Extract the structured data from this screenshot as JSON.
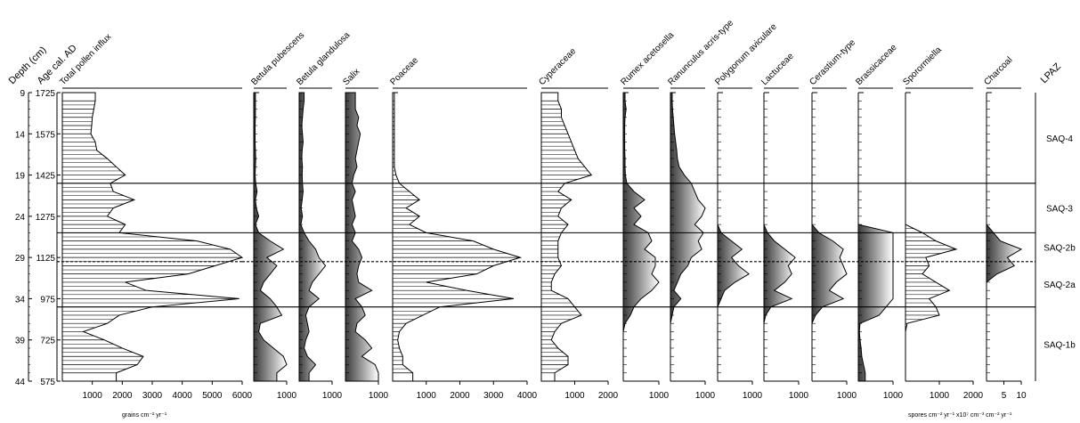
{
  "chart_data": {
    "type": "area",
    "title": "",
    "depth_label": "Depth (cm)",
    "age_label": "Age cal. AD",
    "depth_ticks": [
      9,
      14,
      19,
      24,
      29,
      34,
      39,
      44
    ],
    "age_ticks": [
      1725,
      1575,
      1425,
      1275,
      1125,
      975,
      725,
      575
    ],
    "depth_range": [
      9,
      44
    ],
    "depths": [
      10,
      11,
      12,
      13,
      14,
      15,
      16,
      17,
      18,
      19,
      20,
      21,
      22,
      23,
      24,
      25,
      26,
      27,
      28,
      29,
      30,
      31,
      32,
      33,
      34,
      35,
      36,
      37,
      38,
      39,
      40,
      41,
      42,
      43
    ],
    "series": [
      {
        "name": "Total pollen influx",
        "style": "hatch",
        "xmax": 6000,
        "ticks": [
          1000,
          2000,
          3000,
          4000,
          5000,
          6000
        ],
        "values": [
          1100,
          1050,
          1000,
          980,
          950,
          1100,
          1150,
          1500,
          1800,
          2100,
          1600,
          1700,
          2400,
          1700,
          1500,
          2100,
          1900,
          4500,
          5600,
          6000,
          5100,
          4200,
          2100,
          2800,
          5900,
          3000,
          1900,
          1500,
          700,
          1400,
          2000,
          2700,
          2500,
          1800
        ]
      },
      {
        "name": "Betula pubescens",
        "style": "grad",
        "xmax": 1000,
        "ticks": [
          1000
        ],
        "values": [
          50,
          50,
          50,
          40,
          40,
          40,
          50,
          60,
          50,
          40,
          60,
          100,
          50,
          80,
          150,
          50,
          150,
          500,
          900,
          400,
          700,
          500,
          300,
          200,
          500,
          700,
          850,
          200,
          150,
          300,
          600,
          900,
          1000,
          700
        ]
      },
      {
        "name": "Betula glandulosa",
        "style": "grad",
        "xmax": 1000,
        "ticks": [
          1000
        ],
        "values": [
          150,
          120,
          100,
          80,
          100,
          120,
          90,
          80,
          100,
          90,
          100,
          120,
          90,
          60,
          100,
          50,
          150,
          300,
          500,
          600,
          800,
          600,
          400,
          300,
          600,
          300,
          200,
          250,
          300,
          200,
          150,
          250,
          500,
          300
        ]
      },
      {
        "name": "Salix",
        "style": "grad",
        "xmax": 1000,
        "ticks": [
          1000
        ],
        "values": [
          300,
          300,
          400,
          350,
          450,
          400,
          350,
          300,
          350,
          250,
          200,
          300,
          200,
          250,
          300,
          200,
          300,
          200,
          400,
          500,
          400,
          350,
          400,
          800,
          300,
          500,
          600,
          350,
          300,
          600,
          800,
          500,
          900,
          1000
        ]
      },
      {
        "name": "Poaceae",
        "style": "hatch",
        "xmax": 4000,
        "ticks": [
          1000,
          2000,
          3000,
          4000
        ],
        "values": [
          50,
          50,
          50,
          50,
          50,
          50,
          50,
          50,
          50,
          100,
          200,
          500,
          800,
          400,
          800,
          500,
          1000,
          2400,
          3000,
          3800,
          3000,
          2500,
          1000,
          2200,
          3600,
          1400,
          900,
          400,
          200,
          150,
          200,
          300,
          300,
          600
        ]
      },
      {
        "name": "Cyperaceae",
        "style": "hatch",
        "xmax": 2000,
        "ticks": [
          1000,
          2000
        ],
        "values": [
          500,
          600,
          600,
          700,
          800,
          900,
          1000,
          1100,
          1300,
          1500,
          700,
          500,
          900,
          600,
          500,
          800,
          600,
          500,
          500,
          500,
          600,
          400,
          300,
          300,
          800,
          1000,
          1200,
          600,
          400,
          300,
          500,
          800,
          800,
          400
        ]
      },
      {
        "name": "Rumex acetosella",
        "style": "grad",
        "xmax": 1000,
        "ticks": [
          1000
        ],
        "values": [
          50,
          80,
          50,
          40,
          40,
          40,
          40,
          50,
          50,
          60,
          100,
          300,
          600,
          300,
          500,
          300,
          700,
          800,
          600,
          900,
          900,
          800,
          1000,
          800,
          500,
          300,
          200,
          50,
          0,
          0,
          0,
          0,
          0,
          0
        ]
      },
      {
        "name": "Ranunculus acris-type",
        "style": "grad",
        "xmax": 1000,
        "ticks": [
          1000
        ],
        "values": [
          50,
          60,
          80,
          100,
          120,
          150,
          180,
          200,
          250,
          400,
          600,
          700,
          800,
          1000,
          900,
          700,
          950,
          800,
          900,
          600,
          500,
          300,
          200,
          100,
          300,
          100,
          50,
          0,
          0,
          0,
          0,
          0,
          0,
          0
        ]
      },
      {
        "name": "Polygonum aviculare",
        "style": "grad",
        "xmax": 1000,
        "ticks": [
          1000
        ],
        "values": [
          0,
          0,
          0,
          0,
          0,
          0,
          0,
          0,
          0,
          0,
          0,
          0,
          0,
          0,
          0,
          0,
          100,
          400,
          700,
          400,
          600,
          900,
          500,
          200,
          100,
          0,
          0,
          0,
          0,
          0,
          0,
          0,
          0,
          0
        ]
      },
      {
        "name": "Lactuceae",
        "style": "grad",
        "xmax": 1000,
        "ticks": [
          1000
        ],
        "values": [
          0,
          0,
          0,
          0,
          0,
          0,
          0,
          0,
          0,
          0,
          0,
          0,
          0,
          0,
          0,
          0,
          100,
          300,
          600,
          900,
          700,
          800,
          600,
          300,
          800,
          200,
          50,
          0,
          0,
          0,
          0,
          0,
          0,
          0
        ]
      },
      {
        "name": "Cerastium-type",
        "style": "grad",
        "xmax": 1000,
        "ticks": [
          1000
        ],
        "values": [
          0,
          0,
          0,
          0,
          0,
          0,
          0,
          0,
          0,
          0,
          0,
          0,
          0,
          0,
          0,
          0,
          200,
          600,
          900,
          800,
          900,
          1000,
          700,
          500,
          900,
          300,
          100,
          0,
          0,
          0,
          0,
          0,
          0,
          0
        ]
      },
      {
        "name": "Brassicaceae",
        "style": "grad",
        "xmax": 1000,
        "ticks": [
          1000
        ],
        "values": [
          0,
          0,
          0,
          0,
          0,
          0,
          0,
          0,
          0,
          0,
          0,
          0,
          0,
          0,
          0,
          0,
          1000,
          1000,
          1000,
          1000,
          1000,
          1000,
          1000,
          1000,
          1000,
          800,
          600,
          50,
          30,
          50,
          80,
          100,
          150,
          200
        ]
      },
      {
        "name": "Sporormiella",
        "style": "hatch",
        "xmax": 2000,
        "ticks": [
          1000,
          2000
        ],
        "values": [
          0,
          0,
          0,
          0,
          0,
          0,
          0,
          0,
          0,
          0,
          0,
          0,
          0,
          0,
          0,
          0,
          500,
          900,
          1500,
          600,
          700,
          500,
          900,
          1300,
          700,
          900,
          1000,
          50,
          0,
          0,
          0,
          0,
          0,
          0
        ]
      },
      {
        "name": "Charcoal",
        "style": "grad",
        "xmax": 10,
        "ticks": [
          5,
          10
        ],
        "values": [
          0,
          0,
          0,
          0,
          0,
          0,
          0,
          0,
          0,
          0,
          0,
          0,
          0,
          0,
          0,
          0,
          2,
          4,
          10,
          6,
          8,
          3,
          0,
          0,
          0,
          0,
          0,
          0,
          0,
          0,
          0,
          0,
          0,
          0
        ]
      }
    ],
    "zones": [
      {
        "label": "SAQ-4",
        "top": 9,
        "bottom": 20
      },
      {
        "label": "SAQ-3",
        "top": 20,
        "bottom": 26
      },
      {
        "label": "SAQ-2b",
        "top": 26,
        "bottom": 29.5
      },
      {
        "label": "SAQ-2a",
        "top": 29.5,
        "bottom": 35
      },
      {
        "label": "SAQ-1b",
        "top": 35,
        "bottom": 44
      }
    ],
    "zone_boundaries": [
      {
        "depth": 20,
        "style": "solid"
      },
      {
        "depth": 26,
        "style": "solid"
      },
      {
        "depth": 29.5,
        "style": "dashed"
      },
      {
        "depth": 35,
        "style": "solid"
      }
    ],
    "zone_header": "LPAZ",
    "unit_left": "grains cm⁻² yr⁻¹",
    "unit_right": "spores cm⁻² yr⁻¹ x10⁷ cm⁻³ cm⁻² yr⁻¹"
  }
}
